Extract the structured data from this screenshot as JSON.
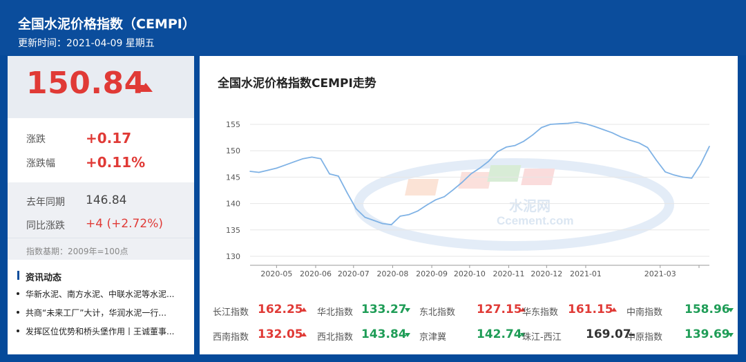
{
  "header": {
    "title": "全国水泥价格指数（CEMPI）",
    "updated": "更新时间：2021-04-09 星期五"
  },
  "summary": {
    "price": "150.84",
    "change_label": "涨跌",
    "change_value": "+0.17",
    "change_pct_label": "涨跌幅",
    "change_pct_value": "+0.11%",
    "last_year_label": "去年同期",
    "last_year_value": "146.84",
    "yoy_label": "同比涨跌",
    "yoy_value": "+4 (+2.72%)",
    "base_note": "指数基期：2009年=100点",
    "colors": {
      "up": "#e03a36",
      "down": "#1f9d57"
    }
  },
  "news": {
    "title": "资讯动态",
    "items": [
      "华新水泥、南方水泥、中联水泥等水泥...",
      "共商“未来工厂”大计，华润水泥一行...",
      "发挥区位优势和桥头堡作用丨王诚董事..."
    ]
  },
  "chart_data": {
    "type": "line",
    "title": "全国水泥价格指数CEMPI走势",
    "xlabel": "",
    "ylabel": "",
    "ylim": [
      130,
      155
    ],
    "yticks": [
      130,
      135,
      140,
      145,
      150,
      155
    ],
    "xticks": [
      "2020-05",
      "2020-06",
      "2020-07",
      "2020-08",
      "2020-09",
      "2020-10",
      "2020-11",
      "2020-12",
      "2021-01",
      "2021-03"
    ],
    "grid": true,
    "line_color": "#7fb2e5",
    "x": [
      "2020-04-10",
      "2020-04-17",
      "2020-04-24",
      "2020-05-01",
      "2020-05-08",
      "2020-05-15",
      "2020-05-22",
      "2020-05-29",
      "2020-06-05",
      "2020-06-12",
      "2020-06-19",
      "2020-06-26",
      "2020-07-03",
      "2020-07-10",
      "2020-07-17",
      "2020-07-24",
      "2020-07-31",
      "2020-08-07",
      "2020-08-14",
      "2020-08-21",
      "2020-08-28",
      "2020-09-04",
      "2020-09-11",
      "2020-09-18",
      "2020-09-25",
      "2020-10-02",
      "2020-10-09",
      "2020-10-16",
      "2020-10-23",
      "2020-10-30",
      "2020-11-06",
      "2020-11-13",
      "2020-11-20",
      "2020-11-27",
      "2020-12-04",
      "2020-12-11",
      "2020-12-18",
      "2020-12-25",
      "2021-01-01",
      "2021-01-08",
      "2021-01-15",
      "2021-01-22",
      "2021-01-29",
      "2021-02-05",
      "2021-02-12",
      "2021-02-19",
      "2021-02-26",
      "2021-03-05",
      "2021-03-12",
      "2021-03-19",
      "2021-03-26",
      "2021-04-02",
      "2021-04-09"
    ],
    "series": [
      {
        "values": [
          146.1,
          145.9,
          146.3,
          146.7,
          147.3,
          147.9,
          148.5,
          148.8,
          148.5,
          145.6,
          145.2,
          142.0,
          139.0,
          137.4,
          136.8,
          136.2,
          136.0,
          137.6,
          137.9,
          138.6,
          139.7,
          140.7,
          141.3,
          142.6,
          144.0,
          145.6,
          146.7,
          148.0,
          149.8,
          150.7,
          151.0,
          151.8,
          153.0,
          154.4,
          155.0,
          155.1,
          155.2,
          155.4,
          155.1,
          154.6,
          154.0,
          153.4,
          152.6,
          152.0,
          151.5,
          150.6,
          148.2,
          146.0,
          145.4,
          145.0,
          144.8,
          147.4,
          150.84
        ]
      }
    ]
  },
  "regions": [
    {
      "name": "长江指数",
      "value": "162.25",
      "trend": "up"
    },
    {
      "name": "华北指数",
      "value": "133.27",
      "trend": "down"
    },
    {
      "name": "东北指数",
      "value": "127.15",
      "trend": "up"
    },
    {
      "name": "华东指数",
      "value": "161.15",
      "trend": "up"
    },
    {
      "name": "中南指数",
      "value": "158.96",
      "trend": "down"
    },
    {
      "name": "西南指数",
      "value": "132.05",
      "trend": "up"
    },
    {
      "name": "西北指数",
      "value": "143.84",
      "trend": "down"
    },
    {
      "name": "京津冀",
      "value": "142.74",
      "trend": "down"
    },
    {
      "name": "珠江-西江",
      "value": "169.07",
      "trend": "flat"
    },
    {
      "name": "中原指数",
      "value": "139.69",
      "trend": "down"
    }
  ],
  "watermark": {
    "text_cn": "水泥网",
    "text_en": "Ccement.com"
  }
}
